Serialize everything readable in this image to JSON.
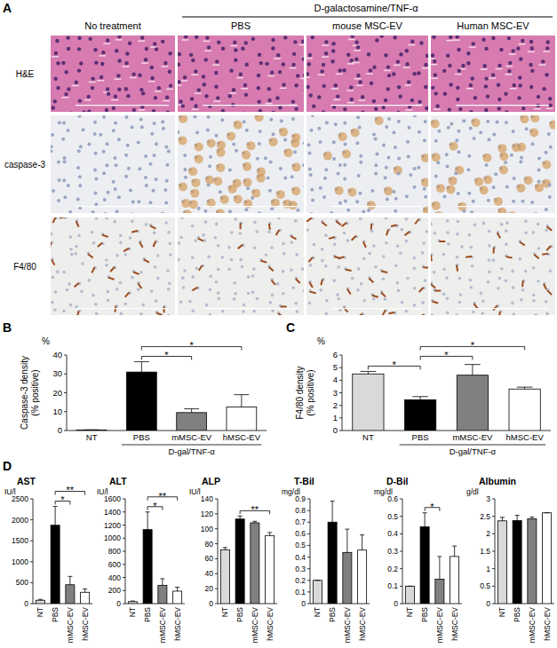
{
  "panel_a": {
    "label": "A",
    "columns": [
      "No  treatment",
      "PBS",
      "mouse MSC-EV",
      "Human MSC-EV"
    ],
    "group": "D-galactosamine/TNF-α",
    "rows": [
      "H&E",
      "caspase-3",
      "F4/80"
    ]
  },
  "chart_data": [
    {
      "type": "bar",
      "panel": "B",
      "y_label": [
        "Caspase-3 density",
        "(% positive)"
      ],
      "y_unit": "%",
      "group_label": "D-gal/TNF-α",
      "group_span": [
        "PBS",
        "hMSC-EV"
      ],
      "categories": [
        "NT",
        "PBS",
        "mMSC-EV",
        "hMSC-EV"
      ],
      "values": [
        0.3,
        31,
        9.5,
        12.5
      ],
      "errors": [
        0.1,
        5.5,
        2,
        6.5
      ],
      "colors": [
        "#d9d9d9",
        "#000000",
        "#808080",
        "#ffffff"
      ],
      "ylim": [
        0,
        40
      ],
      "yticks": [
        0,
        10,
        20,
        30,
        40
      ],
      "significance": [
        {
          "between": [
            "PBS",
            "mMSC-EV"
          ],
          "label": "*"
        },
        {
          "between": [
            "PBS",
            "hMSC-EV"
          ],
          "label": "*"
        }
      ]
    },
    {
      "type": "bar",
      "panel": "C",
      "y_label": [
        "F4/80 density",
        "(% positive)"
      ],
      "y_unit": "%",
      "group_label": "D-gal/TNF-α",
      "group_span": [
        "PBS",
        "hMSC-EV"
      ],
      "categories": [
        "NT",
        "PBS",
        "mMSC-EV",
        "hMSC-EV"
      ],
      "values": [
        4.5,
        2.45,
        4.4,
        3.3
      ],
      "errors": [
        0.2,
        0.25,
        0.85,
        0.15
      ],
      "colors": [
        "#d9d9d9",
        "#000000",
        "#808080",
        "#ffffff"
      ],
      "ylim": [
        0,
        6
      ],
      "yticks": [
        0,
        1,
        2,
        3,
        4,
        5,
        6
      ],
      "significance": [
        {
          "between": [
            "NT",
            "PBS"
          ],
          "label": "*"
        },
        {
          "between": [
            "PBS",
            "mMSC-EV"
          ],
          "label": "*"
        },
        {
          "between": [
            "PBS",
            "hMSC-EV"
          ],
          "label": "*"
        }
      ]
    },
    {
      "type": "bar",
      "panel": "D",
      "title": "AST",
      "y_unit": "IU/l",
      "categories": [
        "NT",
        "PBS",
        "mMSC-EV",
        "hMSC-EV"
      ],
      "values": [
        80,
        1870,
        450,
        270
      ],
      "errors": [
        20,
        450,
        200,
        80
      ],
      "colors": [
        "#d9d9d9",
        "#000000",
        "#808080",
        "#ffffff"
      ],
      "ylim": [
        0,
        2500
      ],
      "yticks": [
        0,
        500,
        1000,
        1500,
        2000,
        2500
      ],
      "significance": [
        {
          "between": [
            "PBS",
            "mMSC-EV"
          ],
          "label": "*"
        },
        {
          "between": [
            "PBS",
            "hMSC-EV"
          ],
          "label": "**"
        }
      ]
    },
    {
      "type": "bar",
      "title": "ALT",
      "y_unit": "IU/l",
      "categories": [
        "NT",
        "PBS",
        "mMSC-EV",
        "hMSC-EV"
      ],
      "values": [
        30,
        1130,
        280,
        190
      ],
      "errors": [
        10,
        270,
        100,
        60
      ],
      "colors": [
        "#d9d9d9",
        "#000000",
        "#808080",
        "#ffffff"
      ],
      "ylim": [
        0,
        1600
      ],
      "yticks": [
        0,
        200,
        400,
        600,
        800,
        1000,
        1200,
        1400,
        1600
      ],
      "significance": [
        {
          "between": [
            "PBS",
            "mMSC-EV"
          ],
          "label": "*"
        },
        {
          "between": [
            "PBS",
            "hMSC-EV"
          ],
          "label": "**"
        }
      ]
    },
    {
      "type": "bar",
      "title": "ALP",
      "y_unit": "IU/l",
      "categories": [
        "NT",
        "PBS",
        "mMSC-EV",
        "hMSC-EV"
      ],
      "values": [
        72,
        113,
        108,
        91
      ],
      "errors": [
        3,
        4,
        2,
        4
      ],
      "colors": [
        "#d9d9d9",
        "#000000",
        "#808080",
        "#ffffff"
      ],
      "ylim": [
        0,
        140
      ],
      "yticks": [
        0,
        20,
        40,
        60,
        80,
        100,
        120,
        140
      ],
      "significance": [
        {
          "between": [
            "PBS",
            "hMSC-EV"
          ],
          "label": "**"
        }
      ]
    },
    {
      "type": "bar",
      "title": "T-Bil",
      "y_unit": "mg/dl",
      "categories": [
        "NT",
        "PBS",
        "mMSC-EV",
        "hMSC-EV"
      ],
      "values": [
        0.2,
        0.7,
        0.44,
        0.46
      ],
      "errors": [
        0,
        0.18,
        0.2,
        0.13
      ],
      "colors": [
        "#d9d9d9",
        "#000000",
        "#808080",
        "#ffffff"
      ],
      "ylim": [
        0,
        0.9
      ],
      "yticks": [
        0,
        0.1,
        0.2,
        0.3,
        0.4,
        0.5,
        0.6,
        0.7,
        0.8,
        0.9
      ],
      "significance": []
    },
    {
      "type": "bar",
      "title": "D-Bil",
      "y_unit": "mg/dl",
      "categories": [
        "NT",
        "PBS",
        "mMSC-EV",
        "hMSC-EV"
      ],
      "values": [
        0.1,
        0.44,
        0.14,
        0.27
      ],
      "errors": [
        0,
        0.08,
        0.13,
        0.06
      ],
      "colors": [
        "#d9d9d9",
        "#000000",
        "#808080",
        "#ffffff"
      ],
      "ylim": [
        0,
        0.6
      ],
      "yticks": [
        0,
        0.1,
        0.2,
        0.3,
        0.4,
        0.5,
        0.6
      ],
      "significance": [
        {
          "between": [
            "PBS",
            "mMSC-EV"
          ],
          "label": "*"
        }
      ]
    },
    {
      "type": "bar",
      "title": "Albumin",
      "y_unit": "g/dl",
      "categories": [
        "NT",
        "PBS",
        "mMSC-EV",
        "hMSC-EV"
      ],
      "values": [
        2.37,
        2.38,
        2.43,
        2.6
      ],
      "errors": [
        0.1,
        0.15,
        0.05,
        0
      ],
      "colors": [
        "#d9d9d9",
        "#000000",
        "#808080",
        "#ffffff"
      ],
      "ylim": [
        0,
        3
      ],
      "yticks": [
        0,
        0.5,
        1,
        1.5,
        2,
        2.5,
        3
      ],
      "significance": []
    }
  ]
}
